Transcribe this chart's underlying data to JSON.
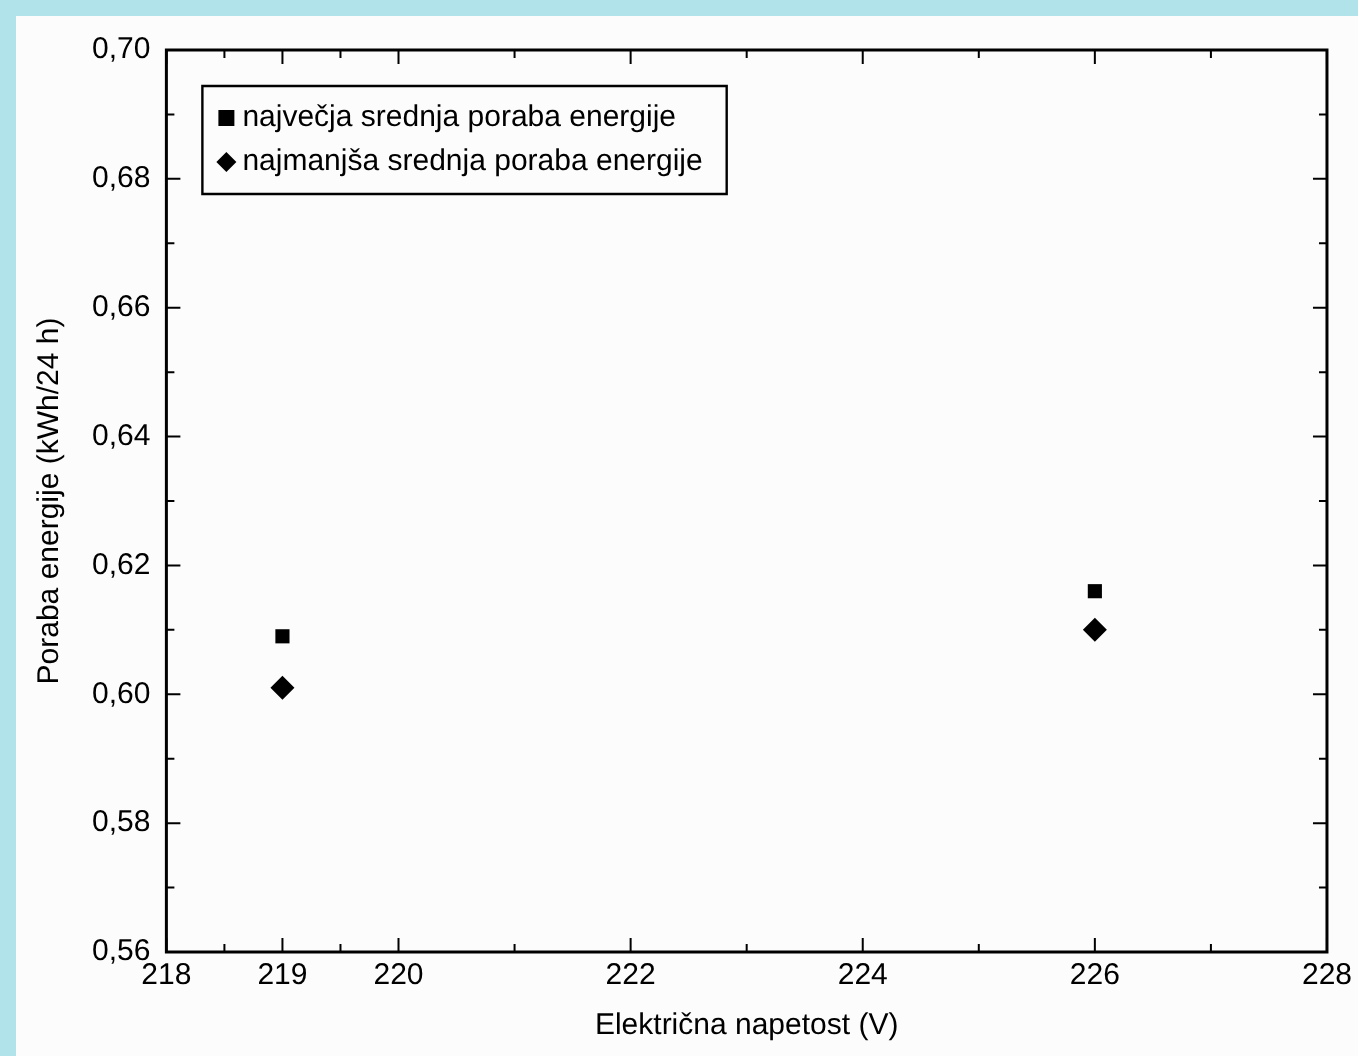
{
  "chart_data": {
    "type": "scatter",
    "xlabel": "Električna napetost (V)",
    "ylabel": "Poraba energije (kWh/24 h)",
    "x": [
      219,
      226
    ],
    "xlim": [
      218,
      228
    ],
    "xticks": [
      218,
      219,
      220,
      222,
      224,
      226,
      228
    ],
    "ylim": [
      0.56,
      0.7
    ],
    "yticks": [
      {
        "value": 0.56,
        "label": "0,56"
      },
      {
        "value": 0.58,
        "label": "0,58"
      },
      {
        "value": 0.6,
        "label": "0,60"
      },
      {
        "value": 0.62,
        "label": "0,62"
      },
      {
        "value": 0.64,
        "label": "0,64"
      },
      {
        "value": 0.66,
        "label": "0,66"
      },
      {
        "value": 0.68,
        "label": "0,68"
      },
      {
        "value": 0.7,
        "label": "0,70"
      }
    ],
    "grid": false,
    "legend": "top left",
    "series": [
      {
        "name": "največja srednja poraba energije",
        "color": "#000000",
        "marker": "square",
        "values": [
          0.609,
          0.616
        ]
      },
      {
        "name": "najmanjša srednja poraba energije",
        "color": "#000000",
        "marker": "diamond",
        "values": [
          0.601,
          0.61
        ]
      }
    ]
  }
}
